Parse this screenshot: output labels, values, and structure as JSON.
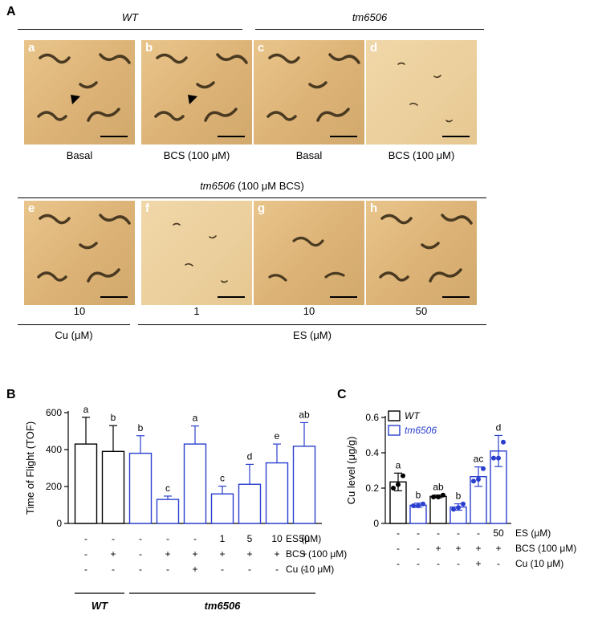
{
  "panelA": {
    "label": "A",
    "groups": [
      {
        "text": "WT",
        "italic": true
      },
      {
        "text": "tm6506",
        "italic": true
      }
    ],
    "row2_header": {
      "strain": "tm6506",
      "condition": " (100 μM BCS)"
    },
    "panels": [
      {
        "letter": "a",
        "caption": "Basal",
        "worms": "many",
        "arrow": true
      },
      {
        "letter": "b",
        "caption": "BCS (100 μM)",
        "worms": "many",
        "arrow": true
      },
      {
        "letter": "c",
        "caption": "Basal",
        "worms": "many",
        "arrow": false
      },
      {
        "letter": "d",
        "caption": "BCS (100 μM)",
        "worms": "tiny",
        "arrow": false
      },
      {
        "letter": "e",
        "caption": "10",
        "worms": "many",
        "arrow": false
      },
      {
        "letter": "f",
        "caption": "1",
        "worms": "tiny",
        "arrow": false
      },
      {
        "letter": "g",
        "caption": "10",
        "worms": "some",
        "arrow": false
      },
      {
        "letter": "h",
        "caption": "50",
        "worms": "many",
        "arrow": false
      }
    ],
    "row2_units": [
      "Cu (μM)",
      "ES (μM)"
    ]
  },
  "chart_data": [
    {
      "type": "bar",
      "panel_label": "B",
      "ylabel": "Time of Flight (TOF)",
      "ylim": [
        0,
        600
      ],
      "yticks": [
        0,
        200,
        400,
        600
      ],
      "values": [
        430,
        390,
        380,
        130,
        430,
        160,
        212,
        328,
        418
      ],
      "errors": [
        145,
        140,
        95,
        18,
        98,
        42,
        108,
        102,
        128
      ],
      "letters": [
        "a",
        "b",
        "b",
        "c",
        "a",
        "c",
        "d",
        "e",
        "ab"
      ],
      "colors": [
        "#000000",
        "#000000",
        "#2a3fcf",
        "#2a3fcf",
        "#2a3fcf",
        "#2a3fcf",
        "#2a3fcf",
        "#2a3fcf",
        "#2a3fcf"
      ],
      "conditions": [
        {
          "label": "ES (μM)",
          "values": [
            "-",
            "-",
            "-",
            "-",
            "-",
            "1",
            "5",
            "10",
            "50"
          ]
        },
        {
          "label": "BCS (100 μM)",
          "values": [
            "-",
            "+",
            "-",
            "+",
            "+",
            "+",
            "+",
            "+",
            "+"
          ]
        },
        {
          "label": "Cu (10 μM)",
          "values": [
            "-",
            "-",
            "-",
            "-",
            "+",
            "-",
            "-",
            "-",
            "-"
          ]
        }
      ],
      "strain_groups": [
        {
          "text": "WT",
          "from": 0,
          "to": 1
        },
        {
          "text": "tm6506",
          "from": 2,
          "to": 8
        }
      ]
    },
    {
      "type": "bar",
      "panel_label": "C",
      "ylabel": "Cu level (μg/g)",
      "ylim": [
        0,
        0.6
      ],
      "yticks": [
        "0",
        "0.2",
        "0.4",
        "0.6"
      ],
      "values": [
        0.235,
        0.103,
        0.153,
        0.093,
        0.265,
        0.41
      ],
      "errors": [
        0.05,
        0.012,
        0.008,
        0.018,
        0.055,
        0.088
      ],
      "points": [
        [
          0.2,
          0.22,
          0.27
        ],
        [
          0.1,
          0.1,
          0.11
        ],
        [
          0.15,
          0.15,
          0.16
        ],
        [
          0.08,
          0.09,
          0.11
        ],
        [
          0.24,
          0.25,
          0.31
        ],
        [
          0.37,
          0.37,
          0.46
        ]
      ],
      "letters": [
        "a",
        "b",
        "ab",
        "b",
        "ac",
        "d"
      ],
      "colors": [
        "#000000",
        "#2a3fcf",
        "#000000",
        "#2a3fcf",
        "#2a3fcf",
        "#2a3fcf"
      ],
      "legend": [
        {
          "name": "WT",
          "color": "#000000"
        },
        {
          "name": "tm6506",
          "color": "#2a3fcf"
        }
      ],
      "legend_position": "top-left",
      "conditions": [
        {
          "label": "ES (μM)",
          "values": [
            "-",
            "-",
            "-",
            "-",
            "-",
            "50"
          ]
        },
        {
          "label": "BCS (100 μM)",
          "values": [
            "-",
            "-",
            "+",
            "+",
            "+",
            "+"
          ]
        },
        {
          "label": "Cu (10 μM)",
          "values": [
            "-",
            "-",
            "-",
            "-",
            "+",
            "-"
          ]
        }
      ]
    }
  ]
}
